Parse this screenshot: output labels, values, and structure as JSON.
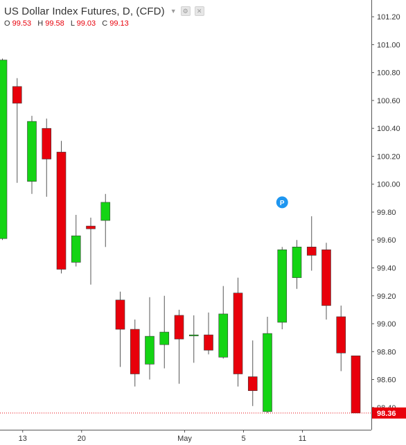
{
  "header": {
    "title": "US Dollar Index Futures, D, (CFD)",
    "ohlc": [
      {
        "label": "O",
        "value": "99.53"
      },
      {
        "label": "H",
        "value": "99.58"
      },
      {
        "label": "L",
        "value": "99.03"
      },
      {
        "label": "C",
        "value": "99.13"
      }
    ]
  },
  "colors": {
    "up": "#14d414",
    "down": "#e8000b",
    "wick": "#555555",
    "axis_text": "#333333",
    "last_price_bg": "#e8000b",
    "marker": "#1e96f0"
  },
  "icons": [
    "settings-icon",
    "close-icon",
    "dropdown-caret-icon"
  ],
  "chart_data": {
    "type": "candlestick",
    "title": "US Dollar Index Futures, D, (CFD)",
    "y_ticks": [
      "98.40",
      "98.60",
      "98.80",
      "99.00",
      "99.20",
      "99.40",
      "99.60",
      "99.80",
      "100.00",
      "100.20",
      "100.40",
      "100.60",
      "100.80",
      "101.00",
      "101.20"
    ],
    "x_ticks": [
      {
        "label": "13",
        "index": 1
      },
      {
        "label": "20",
        "index": 5
      },
      {
        "label": "May",
        "index": 12
      },
      {
        "label": "5",
        "index": 16
      },
      {
        "label": "11",
        "index": 20
      }
    ],
    "ylim": [
      98.24,
      101.32
    ],
    "last_price": "98.36",
    "marker": {
      "label": "P",
      "index": 19,
      "price": 99.87
    },
    "candles": [
      {
        "o": 99.61,
        "h": 100.9,
        "l": 99.6,
        "c": 100.89
      },
      {
        "o": 100.7,
        "h": 100.76,
        "l": 100.01,
        "c": 100.58
      },
      {
        "o": 100.02,
        "h": 100.49,
        "l": 99.93,
        "c": 100.45
      },
      {
        "o": 100.4,
        "h": 100.47,
        "l": 99.91,
        "c": 100.18
      },
      {
        "o": 100.23,
        "h": 100.31,
        "l": 99.36,
        "c": 99.39
      },
      {
        "o": 99.44,
        "h": 99.78,
        "l": 99.41,
        "c": 99.63
      },
      {
        "o": 99.7,
        "h": 99.76,
        "l": 99.28,
        "c": 99.68
      },
      {
        "o": 99.74,
        "h": 99.93,
        "l": 99.55,
        "c": 99.87
      },
      {
        "o": 99.17,
        "h": 99.23,
        "l": 98.69,
        "c": 98.96
      },
      {
        "o": 98.96,
        "h": 99.03,
        "l": 98.55,
        "c": 98.64
      },
      {
        "o": 98.71,
        "h": 99.19,
        "l": 98.6,
        "c": 98.91
      },
      {
        "o": 98.85,
        "h": 99.2,
        "l": 98.68,
        "c": 98.94
      },
      {
        "o": 99.06,
        "h": 99.1,
        "l": 98.57,
        "c": 98.89
      },
      {
        "o": 98.92,
        "h": 99.06,
        "l": 98.72,
        "c": 98.92
      },
      {
        "o": 98.92,
        "h": 99.08,
        "l": 98.78,
        "c": 98.81
      },
      {
        "o": 98.76,
        "h": 99.27,
        "l": 98.75,
        "c": 99.07
      },
      {
        "o": 99.22,
        "h": 99.33,
        "l": 98.55,
        "c": 98.64
      },
      {
        "o": 98.62,
        "h": 98.88,
        "l": 98.41,
        "c": 98.52
      },
      {
        "o": 98.37,
        "h": 99.05,
        "l": 98.36,
        "c": 98.93
      },
      {
        "o": 99.01,
        "h": 99.55,
        "l": 98.96,
        "c": 99.53
      },
      {
        "o": 99.33,
        "h": 99.6,
        "l": 99.25,
        "c": 99.55
      },
      {
        "o": 99.55,
        "h": 99.77,
        "l": 99.38,
        "c": 99.49
      },
      {
        "o": 99.53,
        "h": 99.58,
        "l": 99.03,
        "c": 99.13
      },
      {
        "o": 99.05,
        "h": 99.13,
        "l": 98.66,
        "c": 98.79
      },
      {
        "o": 98.77,
        "h": 98.77,
        "l": 98.36,
        "c": 98.36
      }
    ]
  }
}
